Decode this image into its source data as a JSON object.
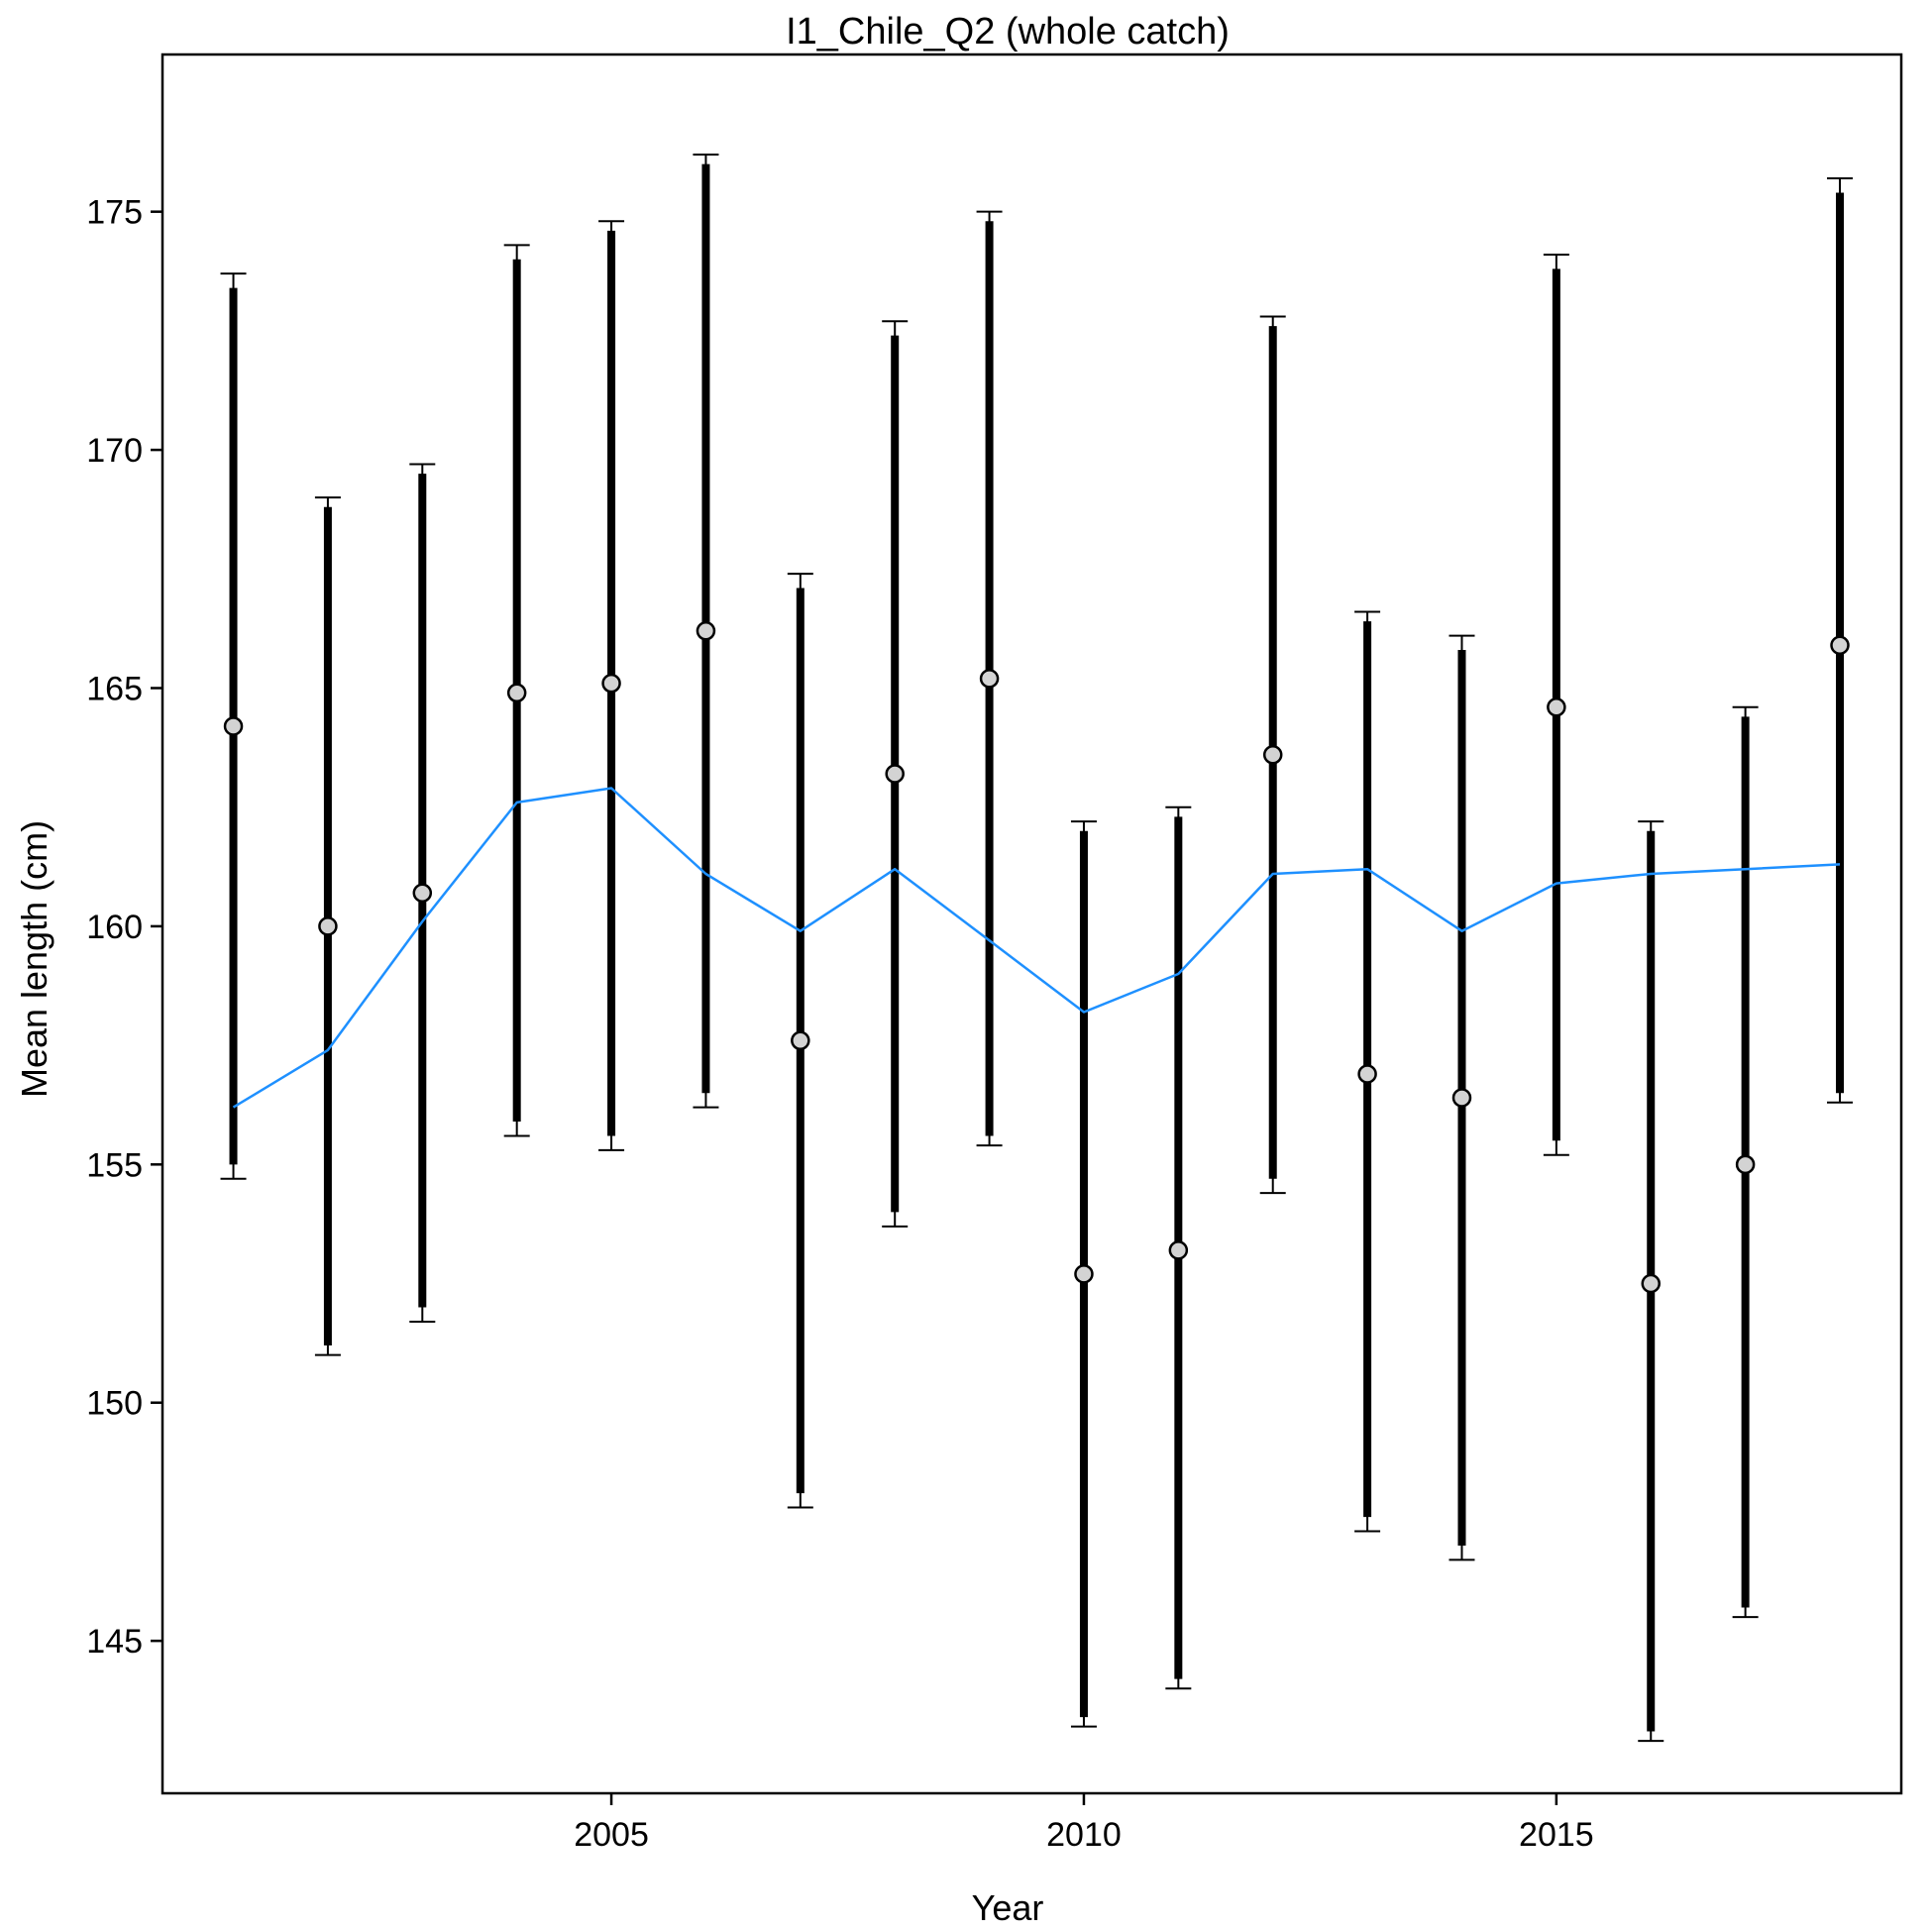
{
  "chart_data": {
    "type": "line",
    "title": "I1_Chile_Q2 (whole catch)",
    "xlabel": "Year",
    "ylabel": "Mean length (cm)",
    "xlim": [
      2000.25,
      2018.65
    ],
    "ylim": [
      141.8,
      178.3
    ],
    "xticks": [
      2005,
      2010,
      2015
    ],
    "yticks": [
      145,
      150,
      155,
      160,
      165,
      170,
      175
    ],
    "grid": false,
    "x": [
      2001,
      2002,
      2003,
      2004,
      2005,
      2006,
      2007,
      2008,
      2009,
      2010,
      2011,
      2012,
      2013,
      2014,
      2015,
      2016,
      2017,
      2018
    ],
    "series": [
      {
        "kind": "observed_points_with_error_bars",
        "point_color": "#d3d3d3",
        "bar_color": "#000000",
        "values": [
          164.2,
          160.0,
          160.7,
          164.9,
          165.1,
          166.2,
          157.6,
          163.2,
          165.2,
          152.7,
          153.2,
          163.6,
          156.9,
          156.4,
          164.6,
          152.5,
          155.0,
          165.9
        ],
        "inner_low": [
          155.0,
          151.2,
          152.0,
          155.9,
          155.6,
          156.5,
          148.1,
          154.0,
          155.6,
          143.4,
          144.2,
          154.7,
          147.6,
          147.0,
          155.5,
          143.1,
          145.7,
          156.5
        ],
        "inner_high": [
          173.4,
          168.8,
          169.5,
          174.0,
          174.6,
          176.0,
          167.1,
          172.4,
          174.8,
          162.0,
          162.3,
          172.6,
          166.4,
          165.8,
          173.8,
          162.0,
          164.4,
          175.4
        ],
        "outer_low": [
          154.7,
          151.0,
          151.7,
          155.6,
          155.3,
          156.2,
          147.8,
          153.7,
          155.4,
          143.2,
          144.0,
          154.4,
          147.3,
          146.7,
          155.2,
          142.9,
          145.5,
          156.3
        ],
        "outer_high": [
          173.7,
          169.0,
          169.7,
          174.3,
          174.8,
          176.2,
          167.4,
          172.7,
          175.0,
          162.2,
          162.5,
          172.8,
          166.6,
          166.1,
          174.1,
          162.2,
          164.6,
          175.7
        ]
      },
      {
        "kind": "expected_line",
        "color": "#1e90ff",
        "values": [
          156.2,
          157.4,
          160.1,
          162.6,
          162.9,
          161.1,
          159.9,
          161.2,
          159.7,
          158.2,
          159.0,
          161.1,
          161.2,
          159.9,
          160.9,
          161.1,
          161.2,
          161.3
        ]
      }
    ]
  }
}
